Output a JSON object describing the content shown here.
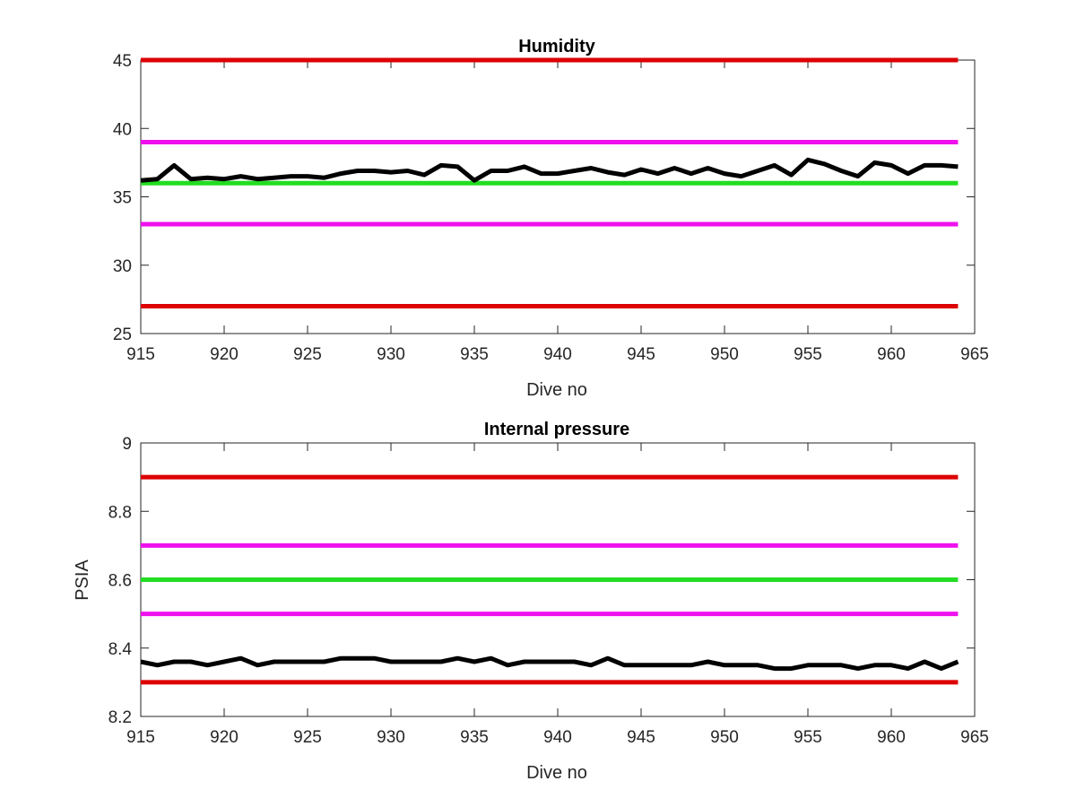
{
  "chart_data": [
    {
      "type": "line",
      "title": "Humidity",
      "xlabel": "Dive no",
      "ylabel": "",
      "xlim": [
        915,
        965
      ],
      "ylim": [
        25,
        45
      ],
      "xticks": [
        915,
        920,
        925,
        930,
        935,
        940,
        945,
        950,
        955,
        960,
        965
      ],
      "yticks": [
        25,
        30,
        35,
        40,
        45
      ],
      "grid": false,
      "legend": "none",
      "reference_lines": [
        {
          "y": 45,
          "color": "#dd0000"
        },
        {
          "y": 39,
          "color": "#ee11ee"
        },
        {
          "y": 36,
          "color": "#22dd22"
        },
        {
          "y": 33,
          "color": "#ee11ee"
        },
        {
          "y": 27,
          "color": "#dd0000"
        }
      ],
      "series": [
        {
          "color": "#000000",
          "x": [
            915,
            916,
            917,
            918,
            919,
            920,
            921,
            922,
            923,
            924,
            925,
            926,
            927,
            928,
            929,
            930,
            931,
            932,
            933,
            934,
            935,
            936,
            937,
            938,
            939,
            940,
            941,
            942,
            943,
            944,
            945,
            946,
            947,
            948,
            949,
            950,
            951,
            952,
            953,
            954,
            955,
            956,
            957,
            958,
            959,
            960,
            961,
            962,
            963,
            964
          ],
          "y": [
            36.2,
            36.3,
            37.3,
            36.3,
            36.4,
            36.3,
            36.5,
            36.3,
            36.4,
            36.5,
            36.5,
            36.4,
            36.7,
            36.9,
            36.9,
            36.8,
            36.9,
            36.6,
            37.3,
            37.2,
            36.2,
            36.9,
            36.9,
            37.2,
            36.7,
            36.7,
            36.9,
            37.1,
            36.8,
            36.6,
            37.0,
            36.7,
            37.1,
            36.7,
            37.1,
            36.7,
            36.5,
            36.9,
            37.3,
            36.6,
            37.7,
            37.4,
            36.9,
            36.5,
            37.5,
            37.3,
            36.7,
            37.3,
            37.3,
            37.2
          ]
        }
      ]
    },
    {
      "type": "line",
      "title": "Internal pressure",
      "xlabel": "Dive no",
      "ylabel": "PSIA",
      "xlim": [
        915,
        965
      ],
      "ylim": [
        8.2,
        9.0
      ],
      "xticks": [
        915,
        920,
        925,
        930,
        935,
        940,
        945,
        950,
        955,
        960,
        965
      ],
      "yticks": [
        8.2,
        8.4,
        8.6,
        8.8,
        9.0
      ],
      "ytick_labels": [
        "8.2",
        "8.4",
        "8.6",
        "8.8",
        "9"
      ],
      "grid": false,
      "legend": "none",
      "reference_lines": [
        {
          "y": 8.9,
          "color": "#dd0000"
        },
        {
          "y": 8.7,
          "color": "#ee11ee"
        },
        {
          "y": 8.6,
          "color": "#22dd22"
        },
        {
          "y": 8.5,
          "color": "#ee11ee"
        },
        {
          "y": 8.3,
          "color": "#dd0000"
        }
      ],
      "series": [
        {
          "color": "#000000",
          "x": [
            915,
            916,
            917,
            918,
            919,
            920,
            921,
            922,
            923,
            924,
            925,
            926,
            927,
            928,
            929,
            930,
            931,
            932,
            933,
            934,
            935,
            936,
            937,
            938,
            939,
            940,
            941,
            942,
            943,
            944,
            945,
            946,
            947,
            948,
            949,
            950,
            951,
            952,
            953,
            954,
            955,
            956,
            957,
            958,
            959,
            960,
            961,
            962,
            963,
            964
          ],
          "y": [
            8.36,
            8.35,
            8.36,
            8.36,
            8.35,
            8.36,
            8.37,
            8.35,
            8.36,
            8.36,
            8.36,
            8.36,
            8.37,
            8.37,
            8.37,
            8.36,
            8.36,
            8.36,
            8.36,
            8.37,
            8.36,
            8.37,
            8.35,
            8.36,
            8.36,
            8.36,
            8.36,
            8.35,
            8.37,
            8.35,
            8.35,
            8.35,
            8.35,
            8.35,
            8.36,
            8.35,
            8.35,
            8.35,
            8.34,
            8.34,
            8.35,
            8.35,
            8.35,
            8.34,
            8.35,
            8.35,
            8.34,
            8.36,
            8.34,
            8.36
          ]
        }
      ]
    }
  ]
}
